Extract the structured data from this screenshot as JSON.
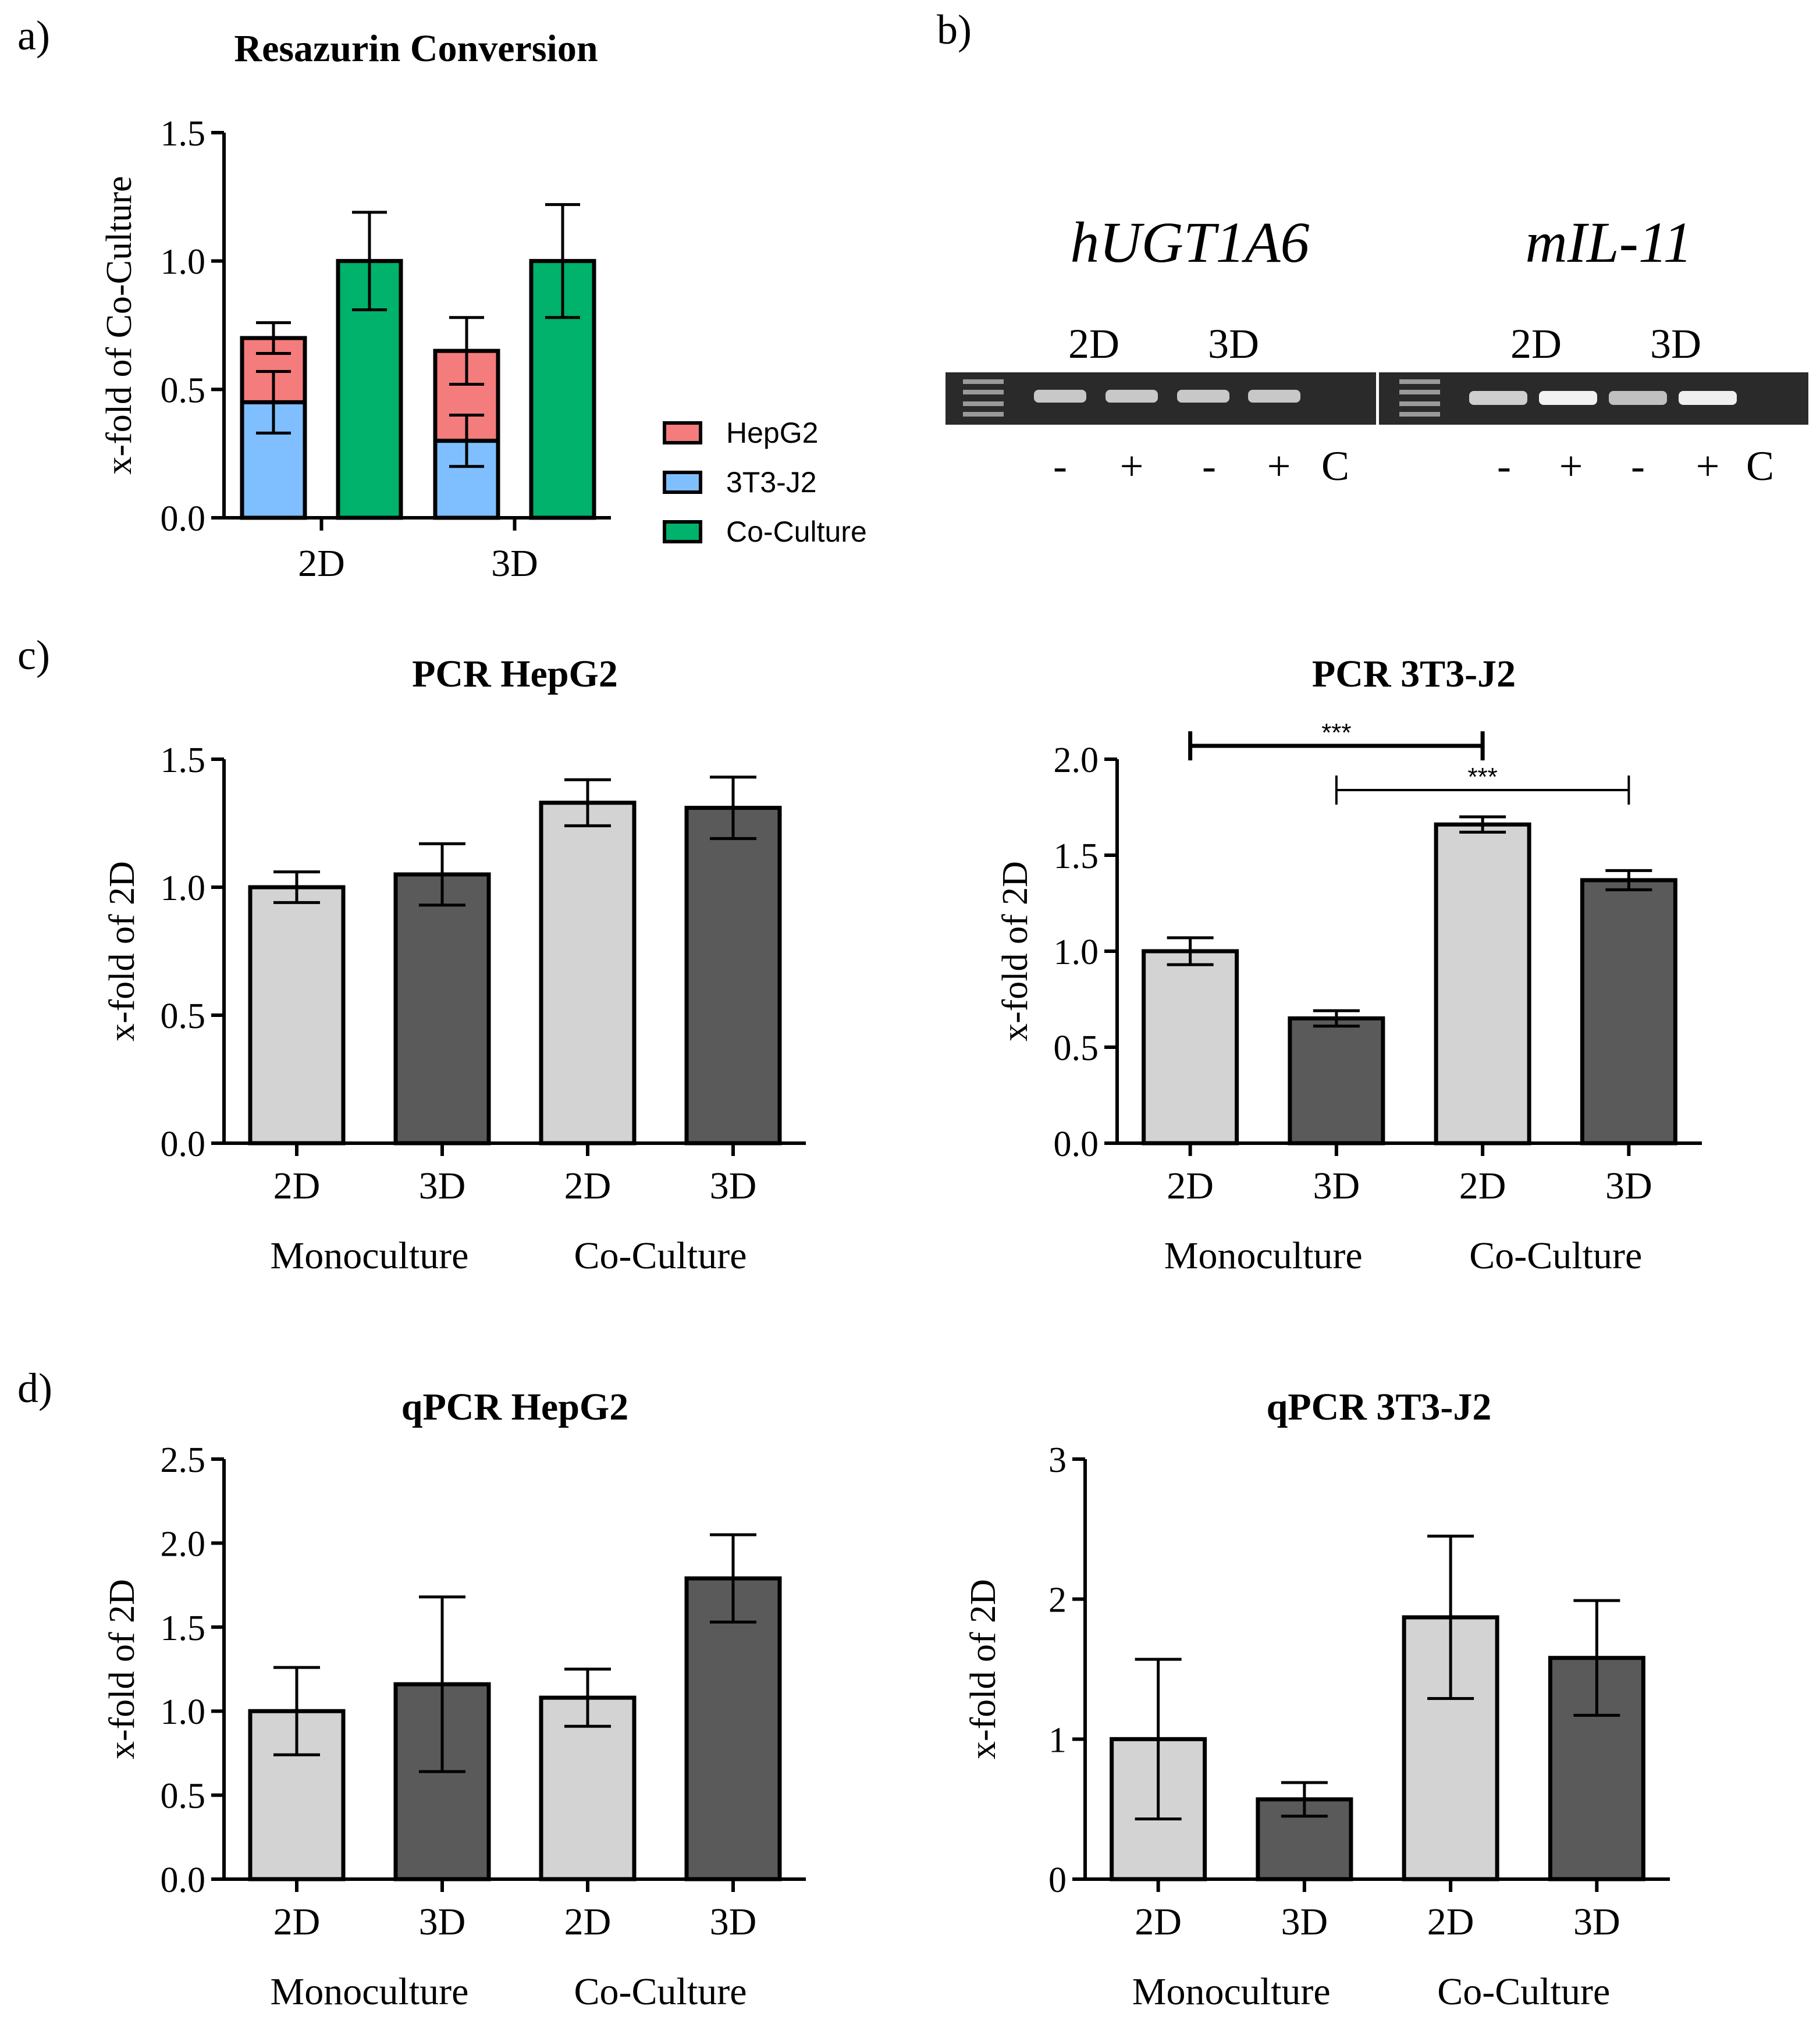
{
  "panel_labels": {
    "a": "a)",
    "b": "b)",
    "c": "c)",
    "d": "d)"
  },
  "colors": {
    "hepg2": "#f47c7c",
    "t3j2": "#7fbfff",
    "coculture": "#00b26b",
    "light_gray": "#d3d3d3",
    "dark_gray": "#5a5a5a",
    "gel_bg": "#2a2a2a",
    "gel_band": "#e8e8e8"
  },
  "gel": {
    "gene1": "hUGT1A6",
    "gene2": "mIL-11",
    "group1_labels": [
      "2D",
      "3D"
    ],
    "group2_labels": [
      "2D",
      "3D"
    ],
    "lanes1": [
      "-",
      "+",
      "-",
      "+",
      "C"
    ],
    "lanes2": [
      "-",
      "+",
      "-",
      "+",
      "C"
    ]
  },
  "chart_data": [
    {
      "id": "resazurin",
      "type": "bar",
      "stacked": true,
      "title": "Resazurin Conversion",
      "ylabel": "x-fold of Co-Culture",
      "categories": [
        "2D",
        "3D"
      ],
      "ylim": [
        0,
        1.5
      ],
      "yticks": [
        "0.0",
        "0.5",
        "1.0",
        "1.5"
      ],
      "series": [
        {
          "name": "3T3-J2",
          "values": [
            0.45,
            0.3
          ],
          "errors": [
            0.12,
            0.1
          ]
        },
        {
          "name": "HepG2",
          "values": [
            0.25,
            0.35
          ],
          "errors": [
            0.06,
            0.13
          ]
        },
        {
          "name": "Co-Culture",
          "values": [
            1.0,
            1.0
          ],
          "errors": [
            0.19,
            0.22
          ]
        }
      ],
      "legend": [
        "HepG2",
        "3T3-J2",
        "Co-Culture"
      ],
      "legend_position": "right"
    },
    {
      "id": "pcr_hepg2",
      "type": "bar",
      "title": "PCR HepG2",
      "ylabel": "x-fold of 2D",
      "categories": [
        "2D",
        "3D",
        "2D",
        "3D"
      ],
      "groups": [
        "Monoculture",
        "Co-Culture"
      ],
      "values": [
        1.0,
        1.05,
        1.33,
        1.31
      ],
      "errors": [
        0.06,
        0.12,
        0.09,
        0.12
      ],
      "ylim": [
        0,
        1.5
      ],
      "yticks": [
        "0.0",
        "0.5",
        "1.0",
        "1.5"
      ]
    },
    {
      "id": "pcr_3t3",
      "type": "bar",
      "title": "PCR 3T3-J2",
      "ylabel": "x-fold of 2D",
      "categories": [
        "2D",
        "3D",
        "2D",
        "3D"
      ],
      "groups": [
        "Monoculture",
        "Co-Culture"
      ],
      "values": [
        1.0,
        0.65,
        1.66,
        1.37
      ],
      "errors": [
        0.07,
        0.04,
        0.04,
        0.05
      ],
      "ylim": [
        0,
        2.0
      ],
      "yticks": [
        "0.0",
        "0.5",
        "1.0",
        "1.5",
        "2.0"
      ],
      "significance": [
        {
          "from": 0,
          "to": 2,
          "label": "***"
        },
        {
          "from": 1,
          "to": 3,
          "label": "***"
        }
      ]
    },
    {
      "id": "qpcr_hepg2",
      "type": "bar",
      "title": "qPCR HepG2",
      "ylabel": "x-fold of 2D",
      "categories": [
        "2D",
        "3D",
        "2D",
        "3D"
      ],
      "groups": [
        "Monoculture",
        "Co-Culture"
      ],
      "values": [
        1.0,
        1.16,
        1.08,
        1.79
      ],
      "errors": [
        0.26,
        0.52,
        0.17,
        0.26
      ],
      "ylim": [
        0,
        2.5
      ],
      "yticks": [
        "0.0",
        "0.5",
        "1.0",
        "1.5",
        "2.0",
        "2.5"
      ]
    },
    {
      "id": "qpcr_3t3",
      "type": "bar",
      "title": "qPCR 3T3-J2",
      "ylabel": "x-fold of 2D",
      "categories": [
        "2D",
        "3D",
        "2D",
        "3D"
      ],
      "groups": [
        "Monoculture",
        "Co-Culture"
      ],
      "values": [
        1.0,
        0.57,
        1.87,
        1.58
      ],
      "errors": [
        0.57,
        0.12,
        0.58,
        0.41
      ],
      "ylim": [
        0,
        3
      ],
      "yticks": [
        "0",
        "1",
        "2",
        "3"
      ]
    }
  ]
}
